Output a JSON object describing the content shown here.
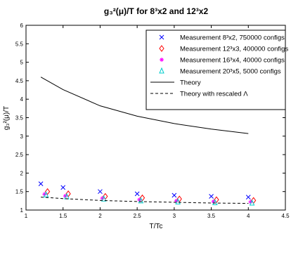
{
  "chart_data": {
    "type": "scatter",
    "title": "g₃²(μ)/T for 8³x2 and 12³x2",
    "xlabel": "T/Tc",
    "ylabel": "g₃²(μ)/T",
    "xlim": [
      1,
      4.5
    ],
    "ylim": [
      1,
      6
    ],
    "xticks": [
      "1",
      "1.5",
      "2",
      "2.5",
      "3",
      "3.5",
      "4",
      "4.5"
    ],
    "yticks": [
      "1",
      "1.5",
      "2",
      "2.5",
      "3",
      "3.5",
      "4",
      "4.5",
      "5",
      "5.5",
      "6"
    ],
    "legend_position": "top-right",
    "grid": false,
    "series": [
      {
        "name": "Measurement 8³x2, 750000 configs",
        "kind": "points",
        "marker": "x",
        "color": "#0000ff",
        "x": [
          1.2,
          1.5,
          2.0,
          2.5,
          3.0,
          3.5,
          4.0
        ],
        "y": [
          1.71,
          1.61,
          1.5,
          1.44,
          1.4,
          1.37,
          1.35
        ]
      },
      {
        "name": "Measurement 12³x3, 400000 configs",
        "kind": "points",
        "marker": "diamond",
        "color": "#ff0000",
        "x": [
          1.29,
          1.57,
          2.07,
          2.57,
          3.07,
          3.57,
          4.07
        ],
        "y": [
          1.5,
          1.44,
          1.37,
          1.33,
          1.3,
          1.28,
          1.26
        ]
      },
      {
        "name": "Measurement 16³x4, 40000 configs",
        "kind": "points",
        "marker": "star",
        "color": "#ff00ff",
        "x": [
          1.25,
          1.53,
          2.03,
          2.53,
          3.03,
          3.53,
          4.03
        ],
        "y": [
          1.43,
          1.38,
          1.32,
          1.28,
          1.25,
          1.23,
          1.22
        ]
      },
      {
        "name": "Measurement 20³x5, 5000 configs",
        "kind": "points",
        "marker": "triangle",
        "color": "#00cccc",
        "x": [
          1.27,
          1.55,
          2.05,
          2.55,
          3.05,
          3.55,
          4.05
        ],
        "y": [
          1.41,
          1.36,
          1.3,
          1.25,
          1.22,
          1.2,
          1.19
        ]
      },
      {
        "name": "Theory",
        "kind": "line",
        "dash": false,
        "color": "#000000",
        "x": [
          1.2,
          1.5,
          2.0,
          2.5,
          3.0,
          3.5,
          4.0
        ],
        "y": [
          4.6,
          4.26,
          3.82,
          3.54,
          3.34,
          3.19,
          3.07
        ]
      },
      {
        "name": "Theory with rescaled Λ",
        "kind": "line",
        "dash": true,
        "color": "#000000",
        "x": [
          1.2,
          1.5,
          2.0,
          2.5,
          3.0,
          3.5,
          4.0
        ],
        "y": [
          1.35,
          1.31,
          1.26,
          1.23,
          1.21,
          1.19,
          1.18
        ]
      }
    ]
  }
}
